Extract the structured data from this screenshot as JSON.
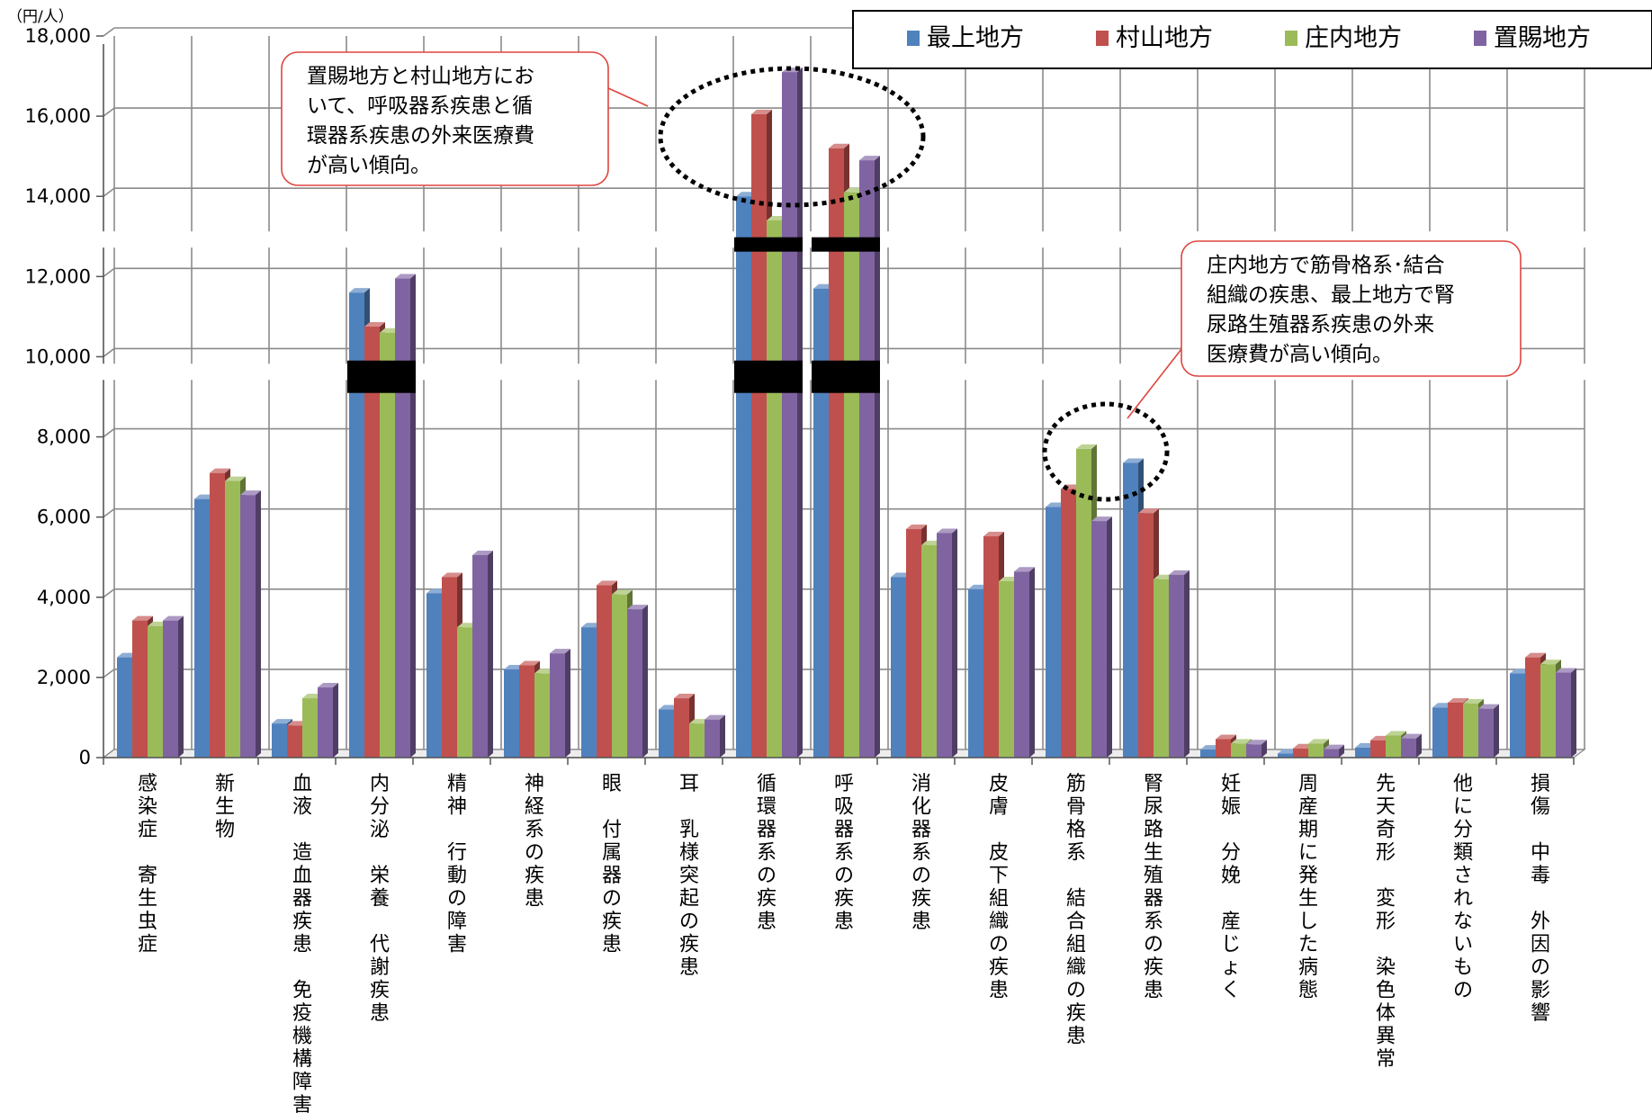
{
  "chart_data": {
    "type": "bar",
    "unit": "（円/人）",
    "ylim": [
      0,
      18000
    ],
    "y_ticks": [
      "0",
      "2,000",
      "4,000",
      "6,000",
      "8,000",
      "10,000",
      "12,000",
      "14,000",
      "16,000",
      "18,000"
    ],
    "grid": true,
    "legend_position": "top-right",
    "categories": [
      "感染症・寄生虫症",
      "新生物",
      "血液・造血器疾患・免疫機構障害",
      "内分泌・栄養・代謝疾患",
      "精神・行動の障害",
      "神経系の疾患",
      "眼・付属器の疾患",
      "耳・乳様突起の疾患",
      "循環器系の疾患",
      "呼吸器系の疾患",
      "消化器系の疾患",
      "皮膚・皮下組織の疾患",
      "筋骨格系・結合組織の疾患",
      "腎尿路生殖器系の疾患",
      "妊娠・分娩・産じょく",
      "周産期に発生した病態",
      "先天奇形・変形・染色体異常",
      "他に分類されないもの",
      "損傷・中毒・外因の影響"
    ],
    "series": [
      {
        "name": "最上地方",
        "color": "#4F81BD",
        "values": [
          2500,
          6450,
          850,
          11600,
          4100,
          2200,
          3250,
          1200,
          14000,
          11700,
          4500,
          4200,
          6250,
          7350,
          200,
          100,
          250,
          1250,
          2100
        ]
      },
      {
        "name": "村山地方",
        "color": "#C0504D",
        "values": [
          3420,
          7100,
          800,
          10750,
          4500,
          2300,
          4300,
          1480,
          16050,
          15200,
          5700,
          5520,
          6700,
          6100,
          460,
          230,
          430,
          1370,
          2500
        ]
      },
      {
        "name": "庄内地方",
        "color": "#9BBB59",
        "values": [
          3280,
          6900,
          1480,
          10600,
          3250,
          2100,
          4070,
          850,
          13400,
          14100,
          5300,
          4400,
          7700,
          4450,
          350,
          350,
          550,
          1350,
          2330
        ]
      },
      {
        "name": "置賜地方",
        "color": "#8064A2",
        "values": [
          3420,
          6550,
          1750,
          11950,
          5050,
          2600,
          3700,
          950,
          17100,
          14900,
          5600,
          4640,
          5900,
          4560,
          330,
          210,
          480,
          1220,
          2120
        ]
      }
    ],
    "axis_breaks": [
      {
        "category_index": 3,
        "value": 9500
      },
      {
        "category_index": 8,
        "value": 9500
      },
      {
        "category_index": 8,
        "value": 12800
      },
      {
        "category_index": 9,
        "value": 9500
      },
      {
        "category_index": 9,
        "value": 12800
      }
    ],
    "annotations": [
      {
        "lines": [
          "置賜地方と村山地方にお",
          "いて、呼吸器系疾患と循",
          "環器系疾患の外来医療費",
          "が高い傾向。"
        ],
        "targets": [
          8,
          9
        ]
      },
      {
        "lines": [
          "庄内地方で筋骨格系･結合",
          "組織の疾患、最上地方で腎",
          "尿路生殖器系疾患の外来",
          "医療費が高い傾向。"
        ],
        "targets": [
          12
        ]
      }
    ]
  }
}
